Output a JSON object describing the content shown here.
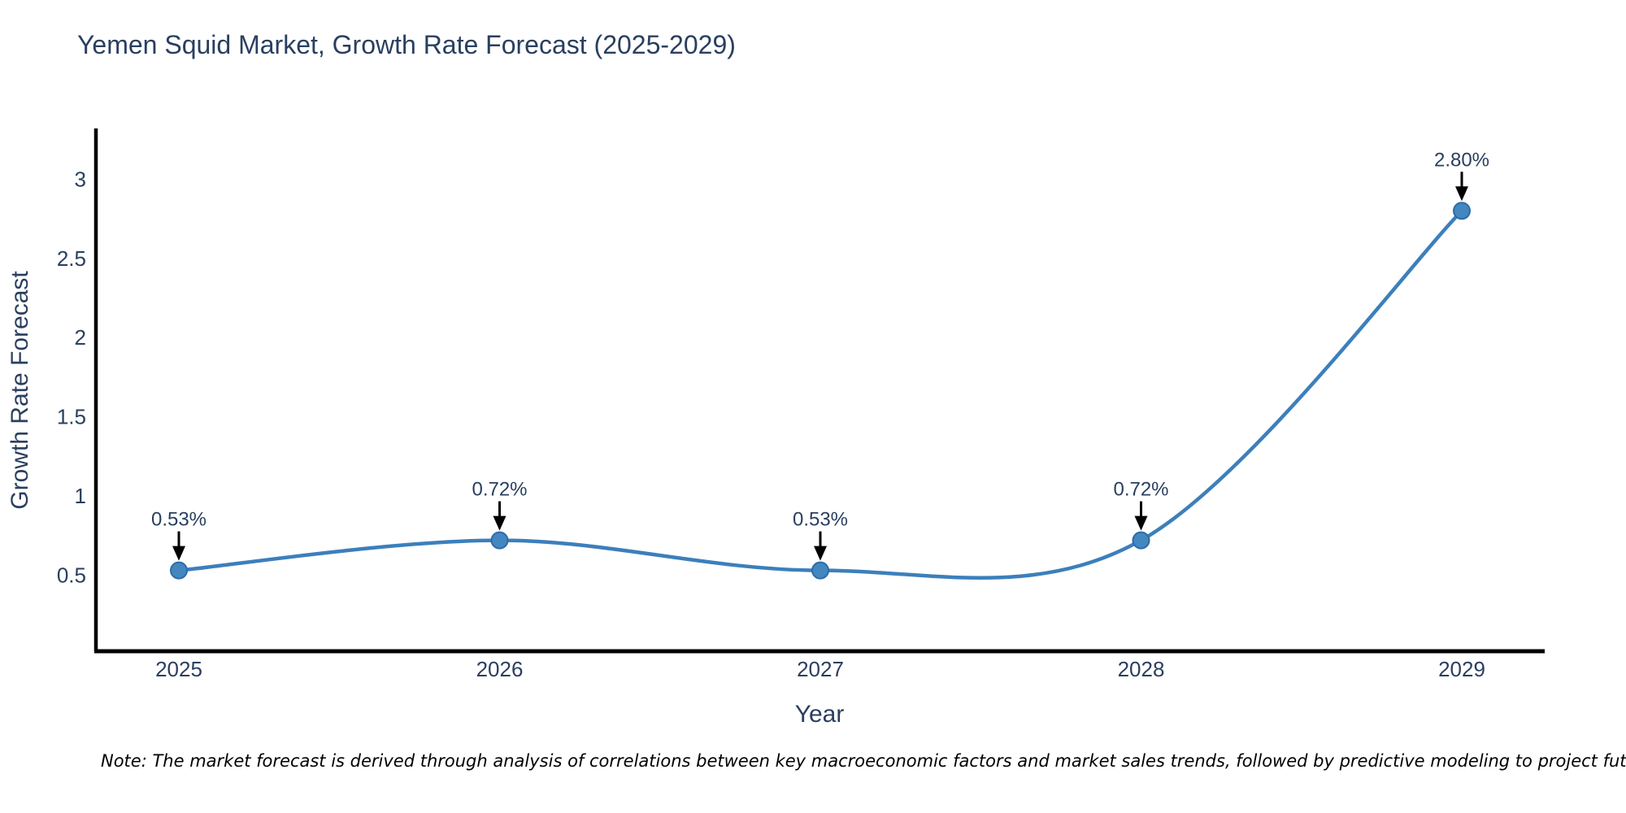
{
  "title": "Yemen Squid Market, Growth Rate Forecast (2025-2029)",
  "note": "Note: The market forecast is derived through analysis of correlations between key macroeconomic factors and market sales trends, followed by predictive modeling to project future sales",
  "colors": {
    "title_text": "#2a3f5f",
    "tick_text": "#2a3f5f",
    "line": "#3c7fbc",
    "marker_fill": "#4287c0",
    "marker_edge": "#2e6ba6",
    "axis_line": "#000000",
    "arrow": "#000000",
    "note_text": "#000000",
    "background": "#ffffff"
  },
  "chart_data": {
    "type": "line",
    "title": "Yemen Squid Market, Growth Rate Forecast (2025-2029)",
    "xlabel": "Year",
    "ylabel": "Growth Rate Forecast",
    "x": [
      "2025",
      "2026",
      "2027",
      "2028",
      "2029"
    ],
    "y": [
      0.53,
      0.72,
      0.53,
      0.72,
      2.8
    ],
    "point_labels": [
      "0.53%",
      "0.72%",
      "0.53%",
      "0.72%",
      "2.80%"
    ],
    "yticks": [
      0.5,
      1,
      1.5,
      2,
      2.5,
      3
    ],
    "ylim": [
      0.02,
      3.32
    ],
    "grid": false,
    "legend": "none",
    "line_shape": "spline",
    "annotations": "black arrows pointing down at each data point from its percentage label"
  }
}
